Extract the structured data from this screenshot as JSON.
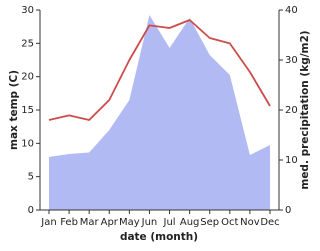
{
  "chart_data": {
    "type": "line-area",
    "categories": [
      "Jan",
      "Feb",
      "Mar",
      "Apr",
      "May",
      "Jun",
      "Jul",
      "Aug",
      "Sep",
      "Oct",
      "Nov",
      "Dec"
    ],
    "x_label": "date (month)",
    "y_label": "max temp (C)",
    "y2_label": "med. precipitation (kg/m2)",
    "ylim": [
      0,
      30
    ],
    "yticks": [
      0,
      5,
      10,
      15,
      20,
      25,
      30
    ],
    "y2lim": [
      0,
      40
    ],
    "y2ticks": [
      0,
      10,
      20,
      30,
      40
    ],
    "series": [
      {
        "name": "max temp",
        "color": "#cd4b4b",
        "values": [
          13.5,
          14.2,
          13.5,
          16.5,
          22.5,
          27.7,
          27.3,
          28.5,
          25.8,
          25,
          20.7,
          15.6
        ]
      },
      {
        "name": "med. precipitation",
        "color": "#b1baf2",
        "axis": "y2",
        "values": [
          10.6,
          11.2,
          11.5,
          16,
          22,
          39,
          32.4,
          38.4,
          31,
          27,
          11,
          13
        ]
      }
    ]
  }
}
